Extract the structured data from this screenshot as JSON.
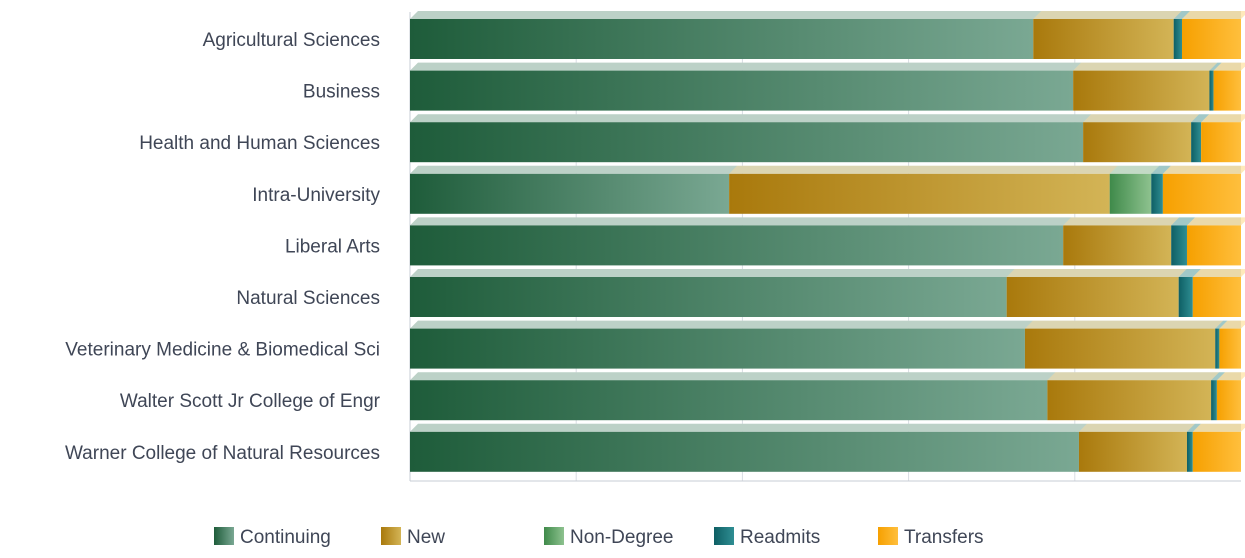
{
  "chart_data": {
    "type": "bar",
    "orientation": "horizontal",
    "stacked": "percent",
    "title": "",
    "xlabel": "",
    "ylabel": "",
    "xlim": [
      0,
      100
    ],
    "grid": true,
    "legend_position": "bottom",
    "categories": [
      "Agricultural Sciences",
      "Business",
      "Health and Human Sciences",
      "Intra-University",
      "Liberal Arts",
      "Natural Sciences",
      "Veterinary Medicine & Biomedical Sci",
      "Walter Scott Jr College of Engr",
      "Warner College of Natural Resources"
    ],
    "series": [
      {
        "name": "Continuing",
        "color_dark": "#1e5c3a",
        "color_light": "#7aa893",
        "values": [
          75.0,
          79.8,
          81.0,
          38.4,
          78.6,
          71.8,
          74.0,
          76.7,
          80.5
        ]
      },
      {
        "name": "New",
        "color_dark": "#a9790c",
        "color_light": "#d3b456",
        "values": [
          16.9,
          16.4,
          13.0,
          45.8,
          13.0,
          20.7,
          22.9,
          19.7,
          13.0
        ]
      },
      {
        "name": "Non-Degree",
        "color_dark": "#3f8a4a",
        "color_light": "#8ec28f",
        "values": [
          0.0,
          0.0,
          0.0,
          5.0,
          0.0,
          0.0,
          0.0,
          0.0,
          0.0
        ]
      },
      {
        "name": "Readmits",
        "color_dark": "#0e5f64",
        "color_light": "#2f8e93",
        "values": [
          1.0,
          0.5,
          1.2,
          1.4,
          1.9,
          1.7,
          0.5,
          0.7,
          0.7
        ]
      },
      {
        "name": "Transfers",
        "color_dark": "#f6a000",
        "color_light": "#ffbf3d",
        "values": [
          7.1,
          3.3,
          4.8,
          9.4,
          6.5,
          5.8,
          2.6,
          2.9,
          5.8
        ]
      }
    ]
  }
}
